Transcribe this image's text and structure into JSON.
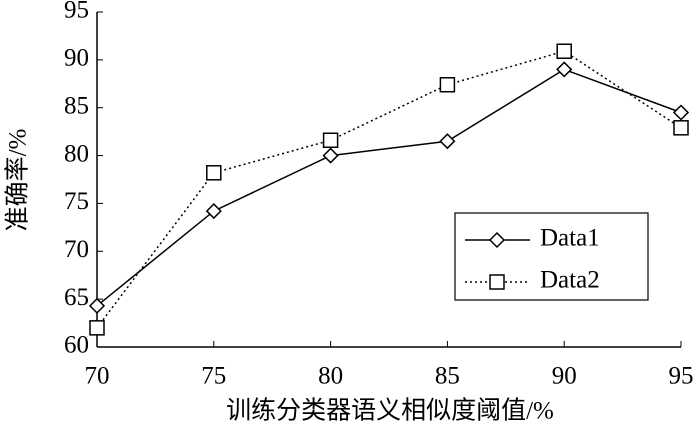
{
  "chart_data": {
    "type": "line",
    "x_label": "训练分类器语义相似度阈值/%",
    "y_label": "准确率/%",
    "x": [
      70,
      75,
      80,
      85,
      90,
      95
    ],
    "series": [
      {
        "name": "Data1",
        "color": "#000000",
        "marker": "diamond",
        "line_style": "solid",
        "values": [
          64.3,
          74.2,
          80.0,
          81.5,
          89.0,
          84.5
        ]
      },
      {
        "name": "Data2",
        "color": "#000000",
        "marker": "square",
        "line_style": "dotted",
        "values": [
          62.0,
          78.2,
          81.6,
          87.4,
          90.9,
          82.9
        ]
      }
    ],
    "xlim": [
      70,
      95
    ],
    "xticks": [
      70,
      75,
      80,
      85,
      90,
      95
    ],
    "ylim": [
      60,
      95
    ],
    "yticks": [
      60,
      65,
      70,
      75,
      80,
      85,
      90,
      95
    ],
    "grid": false,
    "legend": "lower right"
  }
}
